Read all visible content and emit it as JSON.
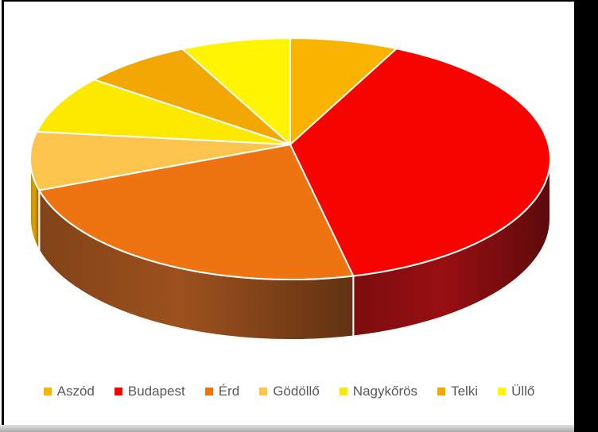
{
  "chart_data": {
    "type": "pie",
    "is_3d": true,
    "title": "",
    "xlabel": "",
    "ylabel": "",
    "legend_position": "bottom",
    "start_angle_deg": 0,
    "direction": "clockwise",
    "value_unit": "percent (estimated from slice angles)",
    "labels": [
      "Aszód",
      "Budapest",
      "Érd",
      "Gödöllő",
      "Nagykőrös",
      "Telki",
      "Üllő"
    ],
    "values": [
      6.7,
      39.4,
      24.7,
      7.8,
      7.8,
      6.8,
      6.8
    ],
    "colors": [
      "#FAB400",
      "#F80400",
      "#EE7311",
      "#FBC44D",
      "#FBE900",
      "#F3A702",
      "#FFF401"
    ],
    "side_colors": [
      "#B07D00",
      "#8A0E10",
      "#8F4A1B",
      "#CE9400",
      "#B0A300",
      "#AA7400",
      "#B3AB00"
    ],
    "slice_border_color": "#FFFFFF"
  },
  "legend": {
    "items": [
      {
        "label": "Aszód",
        "color": "#FAB400"
      },
      {
        "label": "Budapest",
        "color": "#F80400"
      },
      {
        "label": "Érd",
        "color": "#EE7311"
      },
      {
        "label": "Gödöllő",
        "color": "#FBC44D"
      },
      {
        "label": "Nagykőrös",
        "color": "#FBE900"
      },
      {
        "label": "Telki",
        "color": "#F3A702"
      },
      {
        "label": "Üllő",
        "color": "#FFF401"
      }
    ],
    "text_color": "#595959"
  },
  "frame": {
    "background_color": "#000000",
    "canvas_color": "#FFFFFF",
    "bottom_strip_color": "#C9C9C9"
  }
}
